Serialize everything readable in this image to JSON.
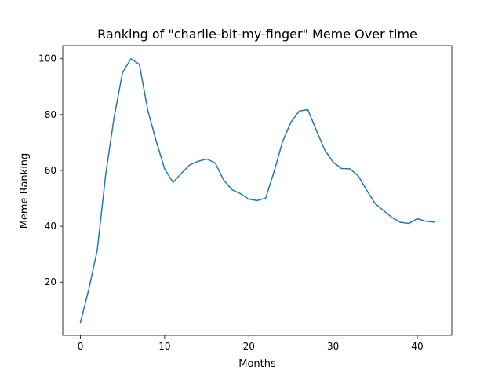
{
  "chart_data": {
    "type": "line",
    "title": "Ranking of \"charlie-bit-my-finger\" Meme Over time",
    "xlabel": "Months",
    "ylabel": "Meme Ranking",
    "xlim": [
      -2.1,
      44.1
    ],
    "ylim": [
      0.95,
      104.7
    ],
    "xticks": [
      0,
      10,
      20,
      30,
      40
    ],
    "yticks": [
      20,
      40,
      60,
      80,
      100
    ],
    "grid": false,
    "line_color": "#1f77b4",
    "series": [
      {
        "x": [
          0,
          1,
          2,
          3,
          4,
          5,
          6,
          7,
          8,
          9,
          10,
          11,
          12,
          13,
          14,
          15,
          16,
          17,
          18,
          19,
          20,
          21,
          22,
          23,
          24,
          25,
          26,
          27,
          28,
          29,
          30,
          31,
          32,
          33,
          34,
          35,
          36,
          37,
          38,
          39,
          40,
          41,
          42
        ],
        "values": [
          5.6,
          17.5,
          31.5,
          58.5,
          79,
          95,
          100,
          98,
          81.5,
          70.5,
          60.5,
          55.7,
          59,
          62,
          63.3,
          64.1,
          62.7,
          56.6,
          53.1,
          51.7,
          49.7,
          49.2,
          50.1,
          59.6,
          70.3,
          77.3,
          81.3,
          81.8,
          74.5,
          67.4,
          63,
          60.7,
          60.6,
          58,
          52.9,
          48.1,
          45.6,
          43.1,
          41.4,
          41,
          42.7,
          41.8,
          41.5
        ]
      }
    ]
  }
}
